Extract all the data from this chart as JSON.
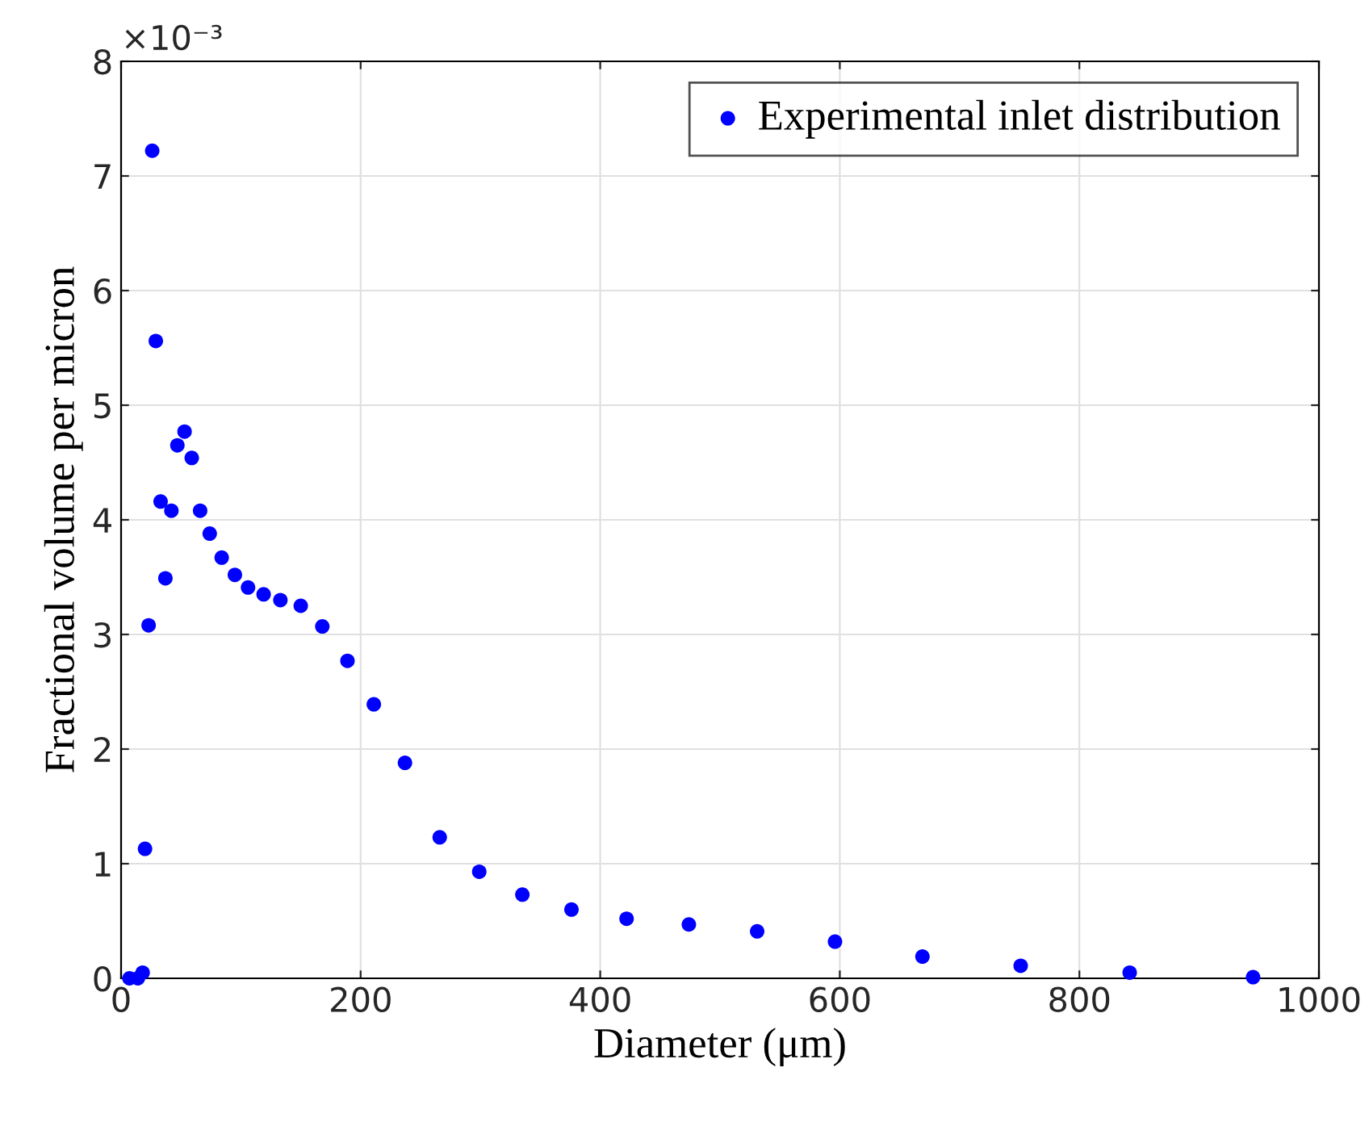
{
  "chart_data": {
    "type": "scatter",
    "xlabel": "Diameter (μm)",
    "ylabel": "Fractional volume per micron",
    "annotations": [
      "×10⁻³"
    ],
    "x": [
      7,
      14,
      18,
      20,
      23,
      26,
      29,
      33,
      37,
      42,
      47,
      53,
      59,
      66,
      74,
      84,
      95,
      106,
      119,
      133,
      150,
      168,
      189,
      211,
      237,
      266,
      299,
      335,
      376,
      422,
      474,
      531,
      596,
      669,
      751,
      842,
      945
    ],
    "series": [
      {
        "name": "Experimental inlet distribution",
        "color": "#0000ff",
        "values": [
          0.0,
          0.0,
          0.05,
          1.13,
          3.08,
          7.22,
          5.56,
          4.16,
          3.49,
          4.08,
          4.65,
          4.77,
          4.54,
          4.08,
          3.88,
          3.67,
          3.52,
          3.41,
          3.35,
          3.3,
          3.25,
          3.07,
          2.77,
          2.39,
          1.88,
          1.23,
          0.93,
          0.73,
          0.6,
          0.52,
          0.47,
          0.41,
          0.32,
          0.19,
          0.11,
          0.05,
          0.01
        ]
      }
    ],
    "xlim": [
      0,
      1000
    ],
    "xticks": [
      0,
      200,
      400,
      600,
      800,
      1000
    ],
    "ylim": [
      0,
      8
    ],
    "yticks": [
      0,
      1,
      2,
      3,
      4,
      5,
      6,
      7,
      8
    ],
    "grid": true,
    "legend": "top right",
    "marker": "circle"
  }
}
